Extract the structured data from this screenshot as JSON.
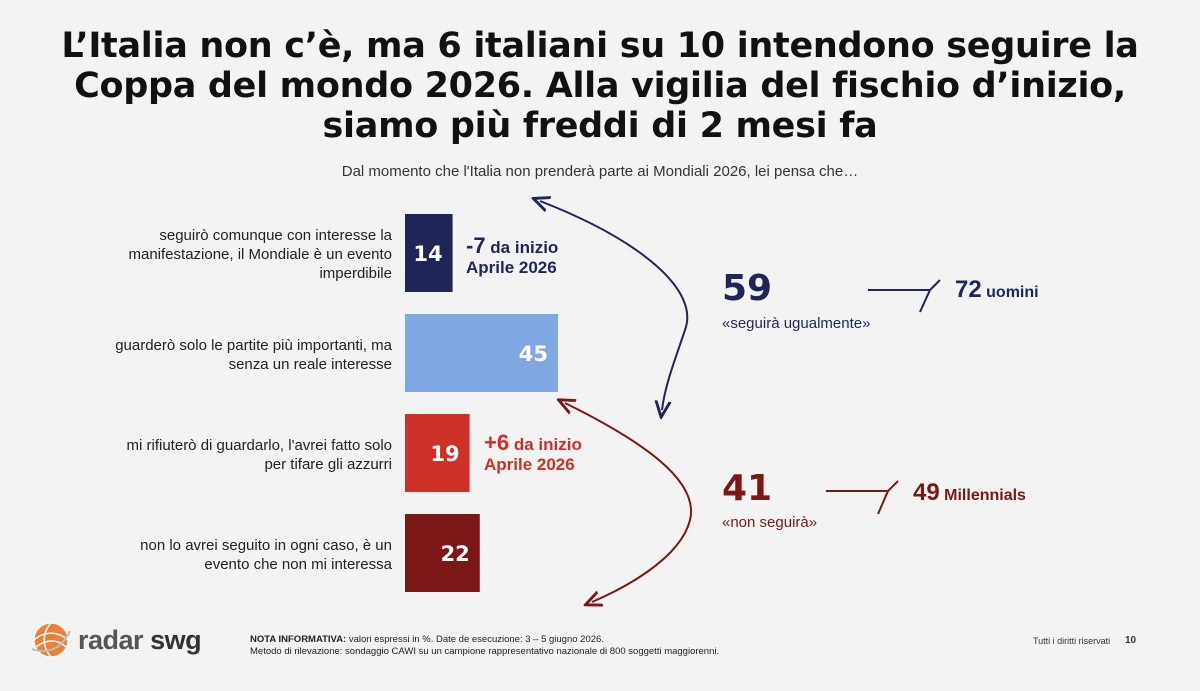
{
  "title": "L’Italia non c’è, ma 6 italiani su 10 intendono seguire la Coppa del mondo 2026. Alla vigilia del fischio d’inizio, siamo più freddi di 2 mesi fa",
  "question": "Dal momento che l'Italia non prenderà parte ai Mondiali 2026, lei pensa che…",
  "colors": {
    "navy": "#1f2556",
    "lightblue": "#7ea7e3",
    "red": "#cc3027",
    "darkred": "#7b1716"
  },
  "chart_data": {
    "type": "bar",
    "orientation": "horizontal",
    "categories": [
      "seguirò comunque con interesse la manifestazione, il Mondiale è un evento imperdibile",
      "guarderò solo le partite più importanti, ma senza un reale interesse",
      "mi rifiuterò di guardarlo, l'avrei fatto solo per tifare gli azzurri",
      "non lo avrei seguito in ogni caso, è un evento che non mi interessa"
    ],
    "values": [
      14,
      45,
      19,
      22
    ],
    "value_labels": [
      "14",
      "45",
      "19",
      "22"
    ],
    "bar_colors": [
      "#1f2556",
      "#7ea7e3",
      "#cc3027",
      "#7b1716"
    ],
    "unit": "%"
  },
  "deltas": [
    {
      "value": "-7",
      "text1": "da inizio",
      "text2": "Aprile 2026",
      "color": "#1f2556"
    },
    {
      "value": "+6",
      "text1": "da inizio",
      "text2": "Aprile 2026",
      "color": "#cc3027"
    }
  ],
  "summary": {
    "follow": {
      "value": "59",
      "label": "«seguirà ugualmente»",
      "sub_value": "72",
      "sub_label": "uomini",
      "color": "#1f2556"
    },
    "not_follow": {
      "value": "41",
      "label": "«non seguirà»",
      "sub_value": "49",
      "sub_label": "Millennials",
      "color": "#7b1716"
    }
  },
  "logo": {
    "part1": "radar",
    "part2": "swg"
  },
  "note": {
    "bold": "NOTA INFORMATIVA:",
    "line1": "valori espressi in %. Date de esecuzione: 3 – 5 giugno 2026.",
    "line2": "Metodo di rilevazione: sondaggio CAWI su un campione rappresentativo nazionale di 800 soggetti maggiorenni."
  },
  "footer": {
    "rights": "Tutti i diritti riservati",
    "page": "10"
  }
}
